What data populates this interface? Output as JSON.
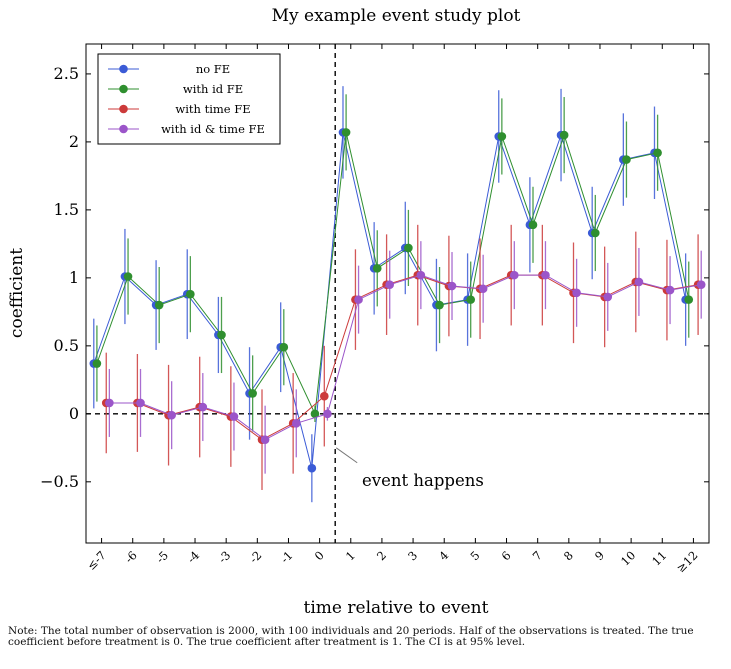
{
  "chart_data": {
    "type": "scatter",
    "title": "My example event study plot",
    "xlabel": "time relative to event",
    "ylabel": "coefficient",
    "categories": [
      "≤-7",
      "-6",
      "-5",
      "-4",
      "-3",
      "-2",
      "-1",
      "0",
      "1",
      "2",
      "3",
      "4",
      "5",
      "6",
      "7",
      "8",
      "9",
      "10",
      "11",
      "≥12"
    ],
    "ylim": [
      -0.95,
      2.72
    ],
    "yticks": [
      -0.5,
      0,
      0.5,
      1,
      1.5,
      2,
      2.5
    ],
    "ytick_labels": [
      "−0.5",
      "0",
      "0.5",
      "1",
      "1.5",
      "2",
      "2.5"
    ],
    "grid": false,
    "legend_position": "top-left",
    "reference_lines": {
      "horizontal_y": 0,
      "vertical_between": [
        "0",
        "1"
      ],
      "style": "dashed"
    },
    "annotation": {
      "text": "event happens",
      "points_to": "event line at y = -0.25"
    },
    "series": [
      {
        "name": "no FE",
        "color": "#3b5bd6",
        "values": [
          0.37,
          1.01,
          0.8,
          0.88,
          0.58,
          0.15,
          0.49,
          -0.4,
          2.07,
          1.07,
          1.22,
          0.8,
          0.84,
          2.04,
          1.39,
          2.05,
          1.33,
          1.87,
          1.92,
          0.84
        ],
        "ci_low": [
          0.04,
          0.66,
          0.47,
          0.55,
          0.3,
          -0.19,
          0.16,
          -0.65,
          1.73,
          0.73,
          0.88,
          0.46,
          0.5,
          1.7,
          1.04,
          1.71,
          0.99,
          1.53,
          1.58,
          0.5
        ],
        "ci_high": [
          0.7,
          1.36,
          1.13,
          1.21,
          0.86,
          0.49,
          0.82,
          -0.15,
          2.41,
          1.41,
          1.56,
          1.14,
          1.18,
          2.38,
          1.74,
          2.39,
          1.67,
          2.21,
          2.26,
          1.18
        ]
      },
      {
        "name": "with id FE",
        "color": "#2f8f2f",
        "values": [
          0.37,
          1.01,
          0.8,
          0.88,
          0.58,
          0.15,
          0.49,
          0.0,
          2.07,
          1.07,
          1.22,
          0.8,
          0.84,
          2.04,
          1.39,
          2.05,
          1.33,
          1.87,
          1.92,
          0.84
        ],
        "ci_low": [
          0.09,
          0.73,
          0.52,
          0.6,
          0.3,
          -0.13,
          0.21,
          -0.06,
          1.79,
          0.79,
          0.94,
          0.52,
          0.56,
          1.76,
          1.11,
          1.77,
          1.05,
          1.59,
          1.64,
          0.56
        ],
        "ci_high": [
          0.65,
          1.29,
          1.08,
          1.16,
          0.86,
          0.43,
          0.77,
          0.06,
          2.35,
          1.35,
          1.5,
          1.08,
          1.12,
          2.32,
          1.67,
          2.33,
          1.61,
          2.15,
          2.2,
          1.12
        ]
      },
      {
        "name": "with time FE",
        "color": "#cc3a3a",
        "values": [
          0.08,
          0.08,
          -0.01,
          0.05,
          -0.02,
          -0.19,
          -0.07,
          0.13,
          0.84,
          0.95,
          1.02,
          0.94,
          0.92,
          1.02,
          1.02,
          0.89,
          0.86,
          0.97,
          0.91,
          0.95
        ],
        "ci_low": [
          -0.29,
          -0.28,
          -0.38,
          -0.32,
          -0.39,
          -0.56,
          -0.44,
          -0.24,
          0.47,
          0.58,
          0.65,
          0.57,
          0.55,
          0.65,
          0.65,
          0.52,
          0.49,
          0.6,
          0.54,
          0.58
        ],
        "ci_high": [
          0.45,
          0.44,
          0.36,
          0.42,
          0.35,
          0.18,
          0.3,
          0.5,
          1.21,
          1.32,
          1.39,
          1.31,
          1.29,
          1.39,
          1.39,
          1.26,
          1.23,
          1.34,
          1.28,
          1.32
        ]
      },
      {
        "name": "with id & time FE",
        "color": "#9b55c9",
        "values": [
          0.08,
          0.08,
          -0.01,
          0.05,
          -0.02,
          -0.19,
          -0.07,
          0.0,
          0.84,
          0.95,
          1.02,
          0.94,
          0.92,
          1.02,
          1.02,
          0.89,
          0.86,
          0.97,
          0.91,
          0.95
        ],
        "ci_low": [
          -0.17,
          -0.17,
          -0.26,
          -0.2,
          -0.27,
          -0.44,
          -0.32,
          -0.05,
          0.59,
          0.7,
          0.77,
          0.69,
          0.67,
          0.77,
          0.77,
          0.64,
          0.61,
          0.72,
          0.66,
          0.7
        ],
        "ci_high": [
          0.33,
          0.33,
          0.24,
          0.3,
          0.23,
          0.06,
          0.18,
          0.05,
          1.09,
          1.2,
          1.27,
          1.19,
          1.17,
          1.27,
          1.27,
          1.14,
          1.11,
          1.22,
          1.16,
          1.2
        ]
      }
    ]
  },
  "note": "Note: The total number of observation is 2000, with 100 individuals and 20 periods. Half of the observations is treated. The true coefficient before treatment is 0. The true coefficient after treatment is 1. The CI is at 95% level."
}
